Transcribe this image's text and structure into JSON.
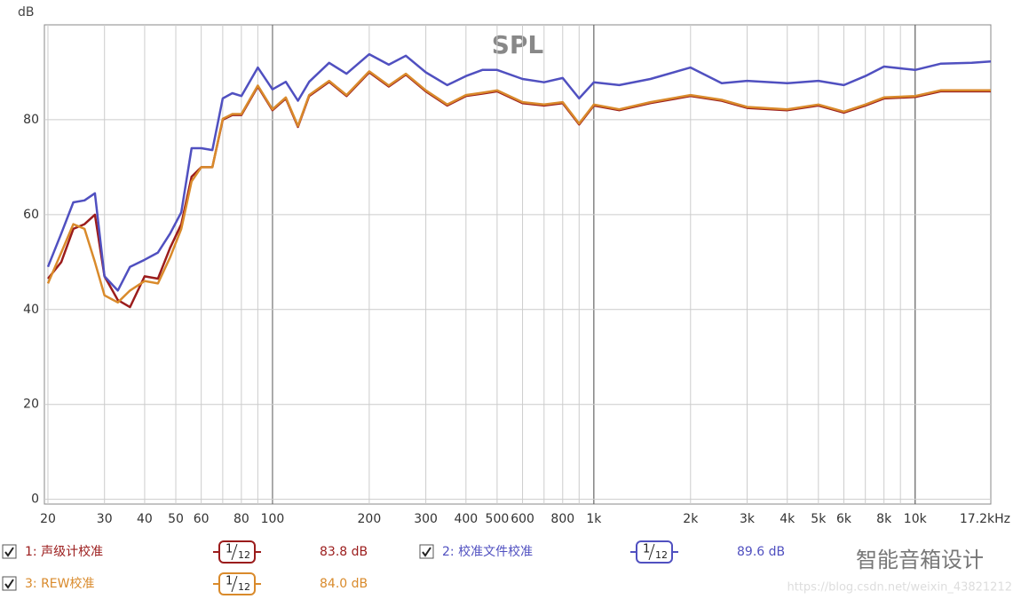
{
  "chart_data": {
    "type": "line",
    "title": "SPL",
    "y_label": "dB",
    "xscale": "log",
    "grid": true,
    "xlim": [
      19.5,
      17200
    ],
    "ylim": [
      -1,
      100
    ],
    "yticks": [
      0,
      20,
      40,
      60,
      80
    ],
    "xticks": [
      20,
      30,
      40,
      50,
      60,
      80,
      100,
      200,
      300,
      400,
      500,
      600,
      800,
      {
        "value": 1000,
        "label": "1k"
      },
      {
        "value": 2000,
        "label": "2k"
      },
      {
        "value": 3000,
        "label": "3k"
      },
      {
        "value": 4000,
        "label": "4k"
      },
      {
        "value": 5000,
        "label": "5k"
      },
      {
        "value": 6000,
        "label": "6k"
      },
      {
        "value": 8000,
        "label": "8k"
      },
      {
        "value": 10000,
        "label": "10k"
      },
      {
        "value": 17200,
        "label": "17.2kHz"
      }
    ],
    "xminor": [
      70,
      90,
      700,
      900,
      7000,
      9000
    ],
    "xmajor": [
      100,
      1000,
      10000
    ],
    "x": [
      20,
      22,
      24,
      26,
      28,
      30,
      33,
      36,
      40,
      44,
      48,
      52,
      56,
      60,
      65,
      70,
      75,
      80,
      90,
      100,
      110,
      120,
      130,
      150,
      170,
      200,
      230,
      260,
      300,
      350,
      400,
      450,
      500,
      600,
      700,
      800,
      900,
      1000,
      1200,
      1500,
      2000,
      2500,
      3000,
      4000,
      5000,
      6000,
      7000,
      8000,
      10000,
      12000,
      15000,
      17200
    ],
    "series": [
      {
        "name": "1: 声级计校准",
        "color": "#9b1c1c",
        "smoothing": [
          "1",
          "12"
        ],
        "level_label": "83.8 dB",
        "values": [
          46.5,
          50,
          57,
          58,
          60,
          47,
          42,
          40.5,
          47,
          46.5,
          53,
          58,
          68,
          70,
          70,
          80,
          81,
          81,
          87,
          82,
          84.5,
          78.5,
          85,
          88,
          85,
          90,
          87,
          89.5,
          86,
          83,
          85,
          85.5,
          86,
          83.5,
          83,
          83.5,
          79,
          83,
          82,
          83.5,
          85,
          84,
          82.5,
          82,
          83,
          81.5,
          83,
          84.5,
          84.8,
          86,
          86,
          86
        ]
      },
      {
        "name": "2: 校准文件校准",
        "color": "#5050c0",
        "smoothing": [
          "1",
          "12"
        ],
        "level_label": "89.6 dB",
        "values": [
          49,
          56,
          62.6,
          63,
          64.5,
          47,
          44,
          49,
          50.5,
          52,
          56,
          60.5,
          74,
          74,
          73.6,
          84.5,
          85.6,
          85,
          91,
          86.4,
          88,
          84,
          88,
          92,
          89.7,
          93.8,
          91.6,
          93.5,
          90,
          87.3,
          89.2,
          90.5,
          90.5,
          88.6,
          87.9,
          88.8,
          84.5,
          87.9,
          87.3,
          88.6,
          91,
          87.7,
          88.2,
          87.7,
          88.2,
          87.3,
          89.2,
          91.2,
          90.5,
          91.8,
          92,
          92.3
        ]
      },
      {
        "name": "3: REW校准",
        "color": "#d98a2b",
        "smoothing": [
          "1",
          "12"
        ],
        "level_label": "84.0 dB",
        "values": [
          45.5,
          52,
          58,
          57,
          50,
          43,
          41.5,
          44,
          46,
          45.5,
          51,
          57,
          67,
          70,
          70,
          80.2,
          81.2,
          81.2,
          87.2,
          82.2,
          84.7,
          78.7,
          85.2,
          88.2,
          85.2,
          90.2,
          87.2,
          89.7,
          86.2,
          83.2,
          85.2,
          85.7,
          86.2,
          83.7,
          83.2,
          83.7,
          79.2,
          83.2,
          82.2,
          83.7,
          85.2,
          84.2,
          82.7,
          82.2,
          83.2,
          81.7,
          83.2,
          84.7,
          85,
          86.2,
          86.2,
          86.2
        ]
      }
    ]
  },
  "watermark": {
    "brand": "智能音箱设计",
    "url": "https://blog.csdn.net/weixin_43821212"
  }
}
